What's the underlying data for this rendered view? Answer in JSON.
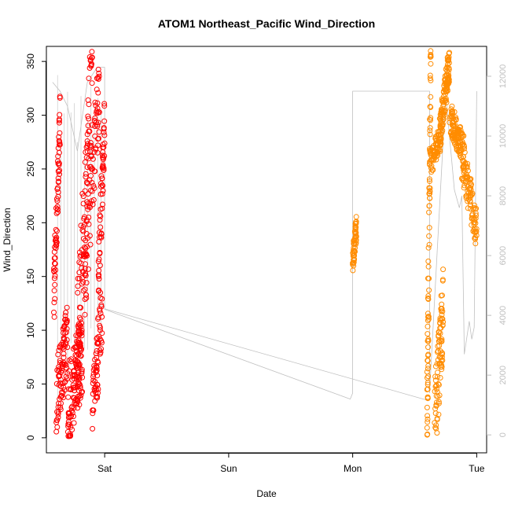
{
  "chart_data": {
    "type": "scatter",
    "title": "ATOM1 Northeast_Pacific Wind_Direction",
    "xlabel": "Date",
    "ylabel": "Wind_Direction",
    "x_unit": "days",
    "x_ticks": [
      {
        "label": "Sat",
        "value": 0
      },
      {
        "label": "Sun",
        "value": 1
      },
      {
        "label": "Mon",
        "value": 2
      },
      {
        "label": "Tue",
        "value": 3
      }
    ],
    "y_ticks": [
      0,
      50,
      100,
      150,
      200,
      250,
      300,
      350
    ],
    "y2_ticks": [
      0,
      2000,
      4000,
      6000,
      8000,
      10000,
      12000
    ],
    "xlim": [
      -0.47,
      3.08
    ],
    "ylim": [
      -14,
      364
    ],
    "y2lim": [
      -600,
      13000
    ],
    "grid": false,
    "legend": "none",
    "colors": {
      "series1": "#ff0000",
      "series2": "#ff8c00",
      "altitude": "#c0c0c0",
      "axis": "#000000",
      "axis2": "#bfbfbf"
    },
    "series": [
      {
        "color": "#ff0000",
        "x_range": [
          -0.41,
          0.0
        ],
        "segments": [
          {
            "x": [
              -0.41,
              -0.36
            ],
            "y": [
              130,
              290
            ],
            "noise": 30,
            "n": 70
          },
          {
            "x": [
              -0.39,
              -0.3
            ],
            "y": [
              40,
              90
            ],
            "noise": 35,
            "n": 90
          },
          {
            "x": [
              -0.3,
              -0.18
            ],
            "y": [
              30,
              80
            ],
            "noise": 40,
            "n": 130
          },
          {
            "x": [
              -0.22,
              -0.1
            ],
            "y": [
              80,
              340
            ],
            "noise": 60,
            "n": 110
          },
          {
            "x": [
              -0.16,
              -0.04
            ],
            "y": [
              150,
              330
            ],
            "noise": 40,
            "n": 80
          },
          {
            "x": [
              -0.05,
              0.0
            ],
            "y": [
              150,
              290
            ],
            "noise": 30,
            "n": 60
          },
          {
            "x": [
              -0.1,
              -0.02
            ],
            "y": [
              20,
              120
            ],
            "noise": 35,
            "n": 70
          }
        ]
      },
      {
        "color": "#ff8c00",
        "x_range": [
          2.0,
          3.0
        ],
        "segments": [
          {
            "x": [
              2.0,
              2.03
            ],
            "y": [
              165,
              195
            ],
            "noise": 12,
            "n": 60
          },
          {
            "x": [
              2.6,
              2.63
            ],
            "y": [
              10,
              350
            ],
            "noise": 50,
            "n": 90
          },
          {
            "x": [
              2.66,
              2.73
            ],
            "y": [
              10,
              120
            ],
            "noise": 40,
            "n": 90
          },
          {
            "x": [
              2.63,
              2.7
            ],
            "y": [
              255,
              280
            ],
            "noise": 12,
            "n": 60
          },
          {
            "x": [
              2.7,
              2.78
            ],
            "y": [
              280,
              350
            ],
            "noise": 18,
            "n": 130
          },
          {
            "x": [
              2.78,
              2.9
            ],
            "y": [
              300,
              265
            ],
            "noise": 15,
            "n": 110
          },
          {
            "x": [
              2.88,
              3.0
            ],
            "y": [
              260,
              195
            ],
            "noise": 20,
            "n": 100
          }
        ]
      }
    ],
    "altitude_series": {
      "x": [
        -0.42,
        -0.36,
        -0.3,
        -0.22,
        -0.14,
        -0.06,
        0.0,
        0.0,
        1.98,
        1.98,
        2.0,
        2.0,
        2.0,
        2.62,
        2.62,
        2.75,
        2.82,
        2.86,
        2.88,
        2.9,
        2.94,
        2.96,
        2.98,
        3.0,
        3.0
      ],
      "y": [
        11800,
        11500,
        11000,
        9500,
        11800,
        12300,
        12300,
        4200,
        1200,
        1200,
        1400,
        11500,
        11500,
        11500,
        1400,
        11400,
        8200,
        7600,
        8000,
        2700,
        3800,
        3200,
        3600,
        11500,
        11500
      ]
    }
  }
}
